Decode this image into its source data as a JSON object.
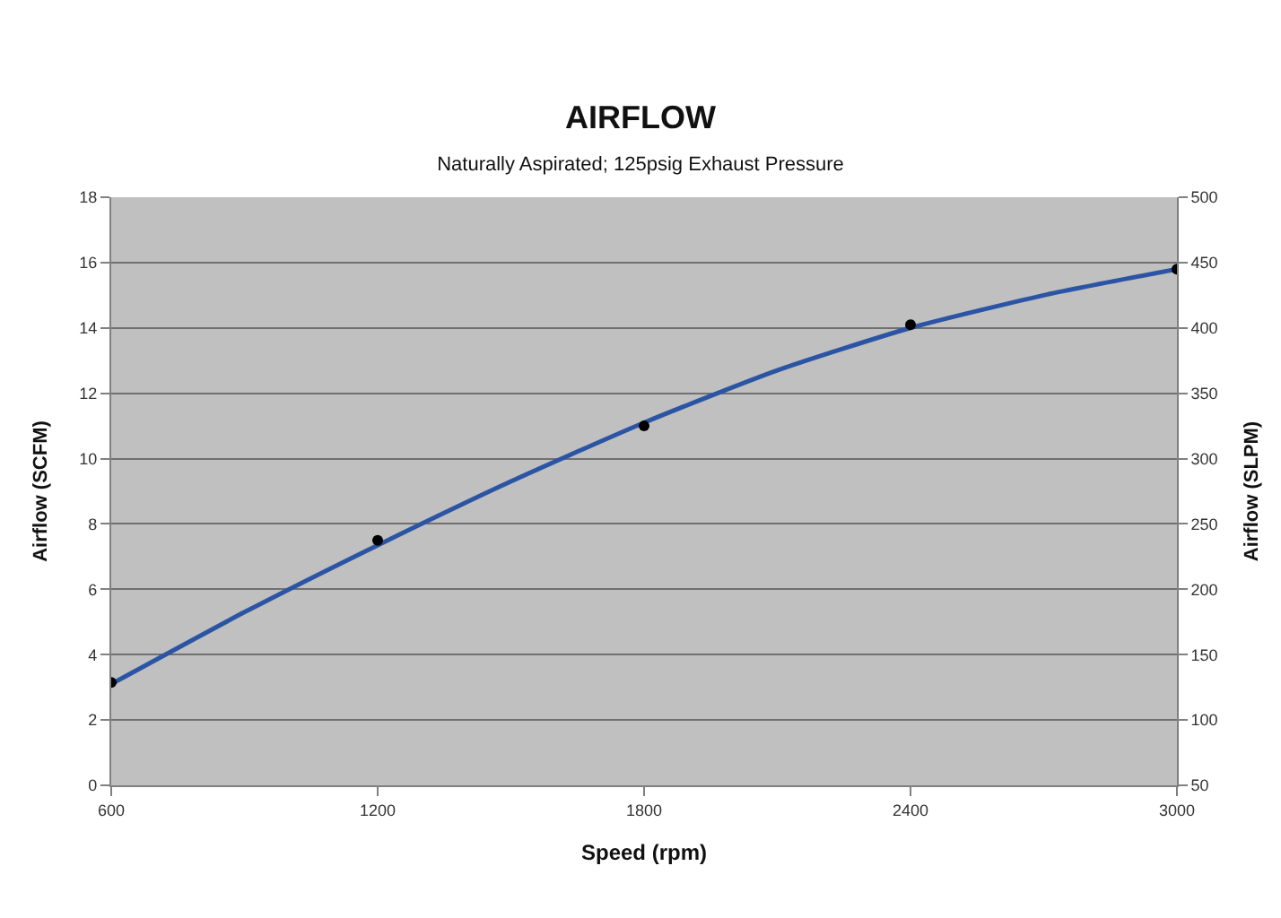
{
  "chart_data": {
    "type": "scatter",
    "title": "AIRFLOW",
    "subtitle": "Naturally Aspirated; 125psig Exhaust Pressure",
    "xlabel": "Speed (rpm)",
    "ylabel": "Airflow (SCFM)",
    "y2label": "Airflow (SLPM)",
    "x": [
      600,
      1200,
      1800,
      2400,
      3000
    ],
    "series": [
      {
        "color": "#000000",
        "values": [
          3.15,
          7.5,
          11.0,
          14.1,
          15.8
        ],
        "marker": "circle"
      },
      {
        "type": "line",
        "color": "#2b55a4",
        "x": [
          600,
          900,
          1200,
          1500,
          1800,
          2100,
          2400,
          2700,
          3000
        ],
        "values": [
          3.1,
          5.3,
          7.35,
          9.3,
          11.1,
          12.7,
          14.0,
          15.0,
          15.8
        ],
        "marker": "none",
        "line_style": "solid"
      }
    ],
    "xlim": [
      600,
      3000
    ],
    "xticks": [
      600,
      1200,
      1800,
      2400,
      3000
    ],
    "ylim": [
      0,
      18
    ],
    "yticks": [
      0,
      2,
      4,
      6,
      8,
      10,
      12,
      14,
      16,
      18
    ],
    "y2lim": [
      50,
      500
    ],
    "y2ticks": [
      50,
      100,
      150,
      200,
      250,
      300,
      350,
      400,
      450,
      500
    ],
    "grid": "y"
  }
}
